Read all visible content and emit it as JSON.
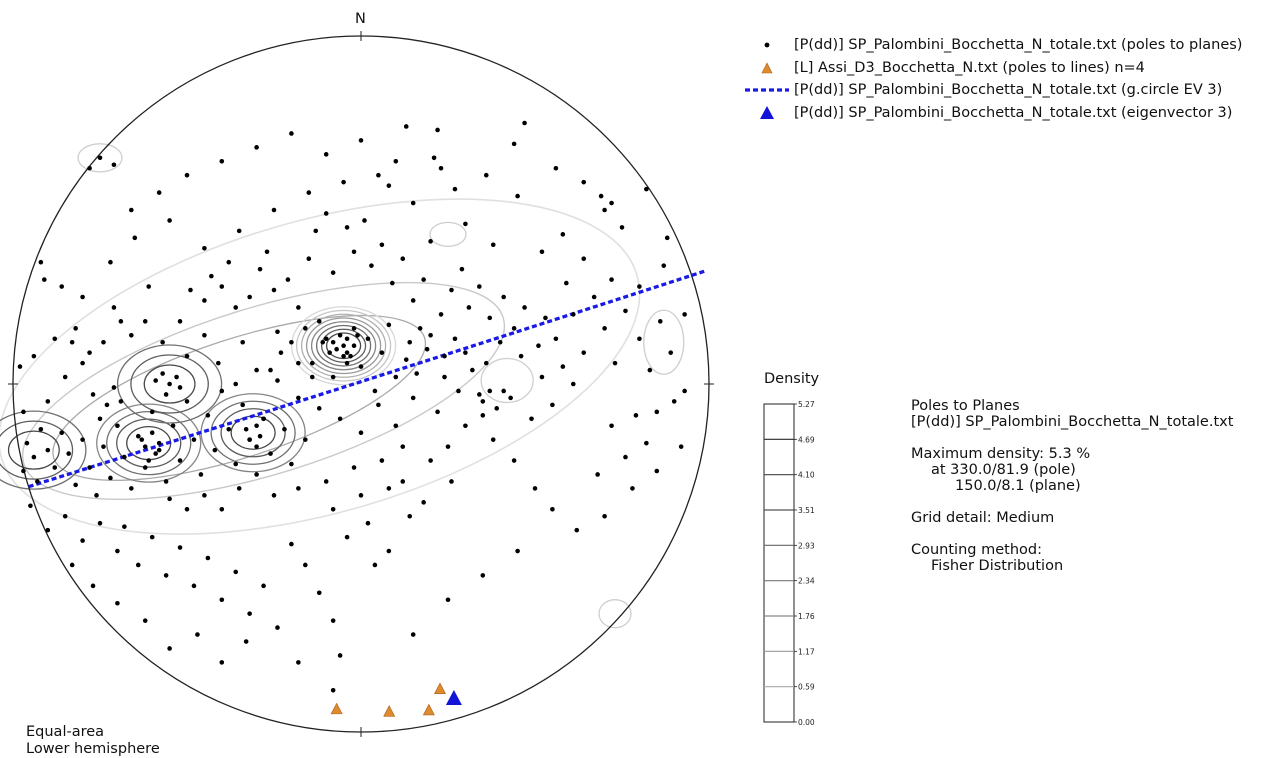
{
  "chart_data": {
    "type": "stereonet-scatter",
    "north_label": "N",
    "projection": {
      "line1": "Equal-area",
      "line2": "Lower hemisphere"
    },
    "legend": [
      {
        "symbol": "dot",
        "color": "#000000",
        "label": "[P(dd)] SP_Palombini_Bocchetta_N_totale.txt (poles to planes)"
      },
      {
        "symbol": "triangle",
        "color": "#e08a2e",
        "label": "[L] Assi_D3_Bocchetta_N.txt (poles to lines) n=4"
      },
      {
        "symbol": "dashed-line",
        "color": "#1a1ae6",
        "label": "[P(dd)] SP_Palombini_Bocchetta_N_totale.txt (g.circle EV 3)"
      },
      {
        "symbol": "big-triangle",
        "color": "#1414d9",
        "label": "[P(dd)] SP_Palombini_Bocchetta_N_totale.txt (eigenvector 3)"
      }
    ],
    "colorbar": {
      "title": "Density",
      "ticks": [
        "5.27",
        "4.69",
        "4.10",
        "3.51",
        "2.93",
        "2.34",
        "1.76",
        "1.17",
        "0.59",
        "0.00"
      ]
    },
    "info": {
      "heading": "Poles to Planes",
      "file": "[P(dd)] SP_Palombini_Bocchetta_N_totale.txt",
      "max_density": "Maximum density: 5.3 %",
      "max_pole": "at 330.0/81.9 (pole)",
      "max_plane": "150.0/8.1 (plane)",
      "grid": "Grid detail: Medium",
      "counting_label": "Counting method:",
      "counting_method": "Fisher Distribution"
    },
    "great_circle_ev3": {
      "color": "#1a1ae6"
    },
    "eigenvector3": {
      "x": 0.267,
      "y": -0.905,
      "color": "#1414d9"
    },
    "lines": [
      {
        "x": -0.07,
        "y": -0.935
      },
      {
        "x": 0.081,
        "y": -0.942
      },
      {
        "x": 0.195,
        "y": -0.938
      },
      {
        "x": 0.227,
        "y": -0.877
      }
    ],
    "density_max_centers": [
      {
        "x": -0.05,
        "y": 0.11,
        "levels": 8
      },
      {
        "x": -0.31,
        "y": -0.14,
        "levels": 4
      },
      {
        "x": -0.61,
        "y": -0.17,
        "levels": 4
      },
      {
        "x": -0.55,
        "y": 0.0,
        "levels": 3
      },
      {
        "x": -0.94,
        "y": -0.19,
        "levels": 3
      }
    ],
    "poles": [
      [
        -0.75,
        0.65
      ],
      [
        -0.78,
        0.62
      ],
      [
        -0.71,
        0.63
      ],
      [
        0.13,
        0.74
      ],
      [
        0.22,
        0.73
      ],
      [
        0.47,
        0.75
      ],
      [
        0.44,
        0.69
      ],
      [
        0.21,
        0.65
      ],
      [
        0.08,
        0.57
      ],
      [
        0.27,
        0.56
      ],
      [
        0.23,
        0.62
      ],
      [
        0.45,
        0.54
      ],
      [
        0.69,
        0.54
      ],
      [
        0.7,
        0.5
      ],
      [
        0.82,
        0.56
      ],
      [
        0.72,
        0.52
      ],
      [
        -0.91,
        0.3
      ],
      [
        -0.86,
        0.28
      ],
      [
        -0.82,
        0.16
      ],
      [
        -0.83,
        0.12
      ],
      [
        -0.78,
        0.09
      ],
      [
        -0.8,
        0.25
      ],
      [
        -0.71,
        0.22
      ],
      [
        -0.62,
        0.18
      ],
      [
        -0.61,
        0.28
      ],
      [
        -0.52,
        0.18
      ],
      [
        -0.49,
        0.27
      ],
      [
        -0.45,
        0.24
      ],
      [
        -0.43,
        0.31
      ],
      [
        -0.4,
        0.28
      ],
      [
        -0.38,
        0.35
      ],
      [
        -0.36,
        0.22
      ],
      [
        -0.32,
        0.25
      ],
      [
        -0.29,
        0.33
      ],
      [
        -0.27,
        0.38
      ],
      [
        -0.25,
        0.27
      ],
      [
        -0.21,
        0.3
      ],
      [
        -0.18,
        0.22
      ],
      [
        -0.15,
        0.36
      ],
      [
        -0.13,
        0.44
      ],
      [
        -0.1,
        0.49
      ],
      [
        -0.08,
        0.32
      ],
      [
        -0.04,
        0.45
      ],
      [
        -0.02,
        0.38
      ],
      [
        0.01,
        0.47
      ],
      [
        0.03,
        0.34
      ],
      [
        0.06,
        0.4
      ],
      [
        0.09,
        0.29
      ],
      [
        0.12,
        0.36
      ],
      [
        0.15,
        0.24
      ],
      [
        0.18,
        0.3
      ],
      [
        0.2,
        0.41
      ],
      [
        0.23,
        0.2
      ],
      [
        0.26,
        0.27
      ],
      [
        0.29,
        0.33
      ],
      [
        0.31,
        0.22
      ],
      [
        0.34,
        0.28
      ],
      [
        0.37,
        0.19
      ],
      [
        0.41,
        0.25
      ],
      [
        0.44,
        0.16
      ],
      [
        0.47,
        0.22
      ],
      [
        0.51,
        0.11
      ],
      [
        0.53,
        0.19
      ],
      [
        0.56,
        0.13
      ],
      [
        0.59,
        0.29
      ],
      [
        0.61,
        0.2
      ],
      [
        0.64,
        0.09
      ],
      [
        0.67,
        0.25
      ],
      [
        0.7,
        0.16
      ],
      [
        0.73,
        0.06
      ],
      [
        0.76,
        0.21
      ],
      [
        0.8,
        0.13
      ],
      [
        0.83,
        0.04
      ],
      [
        0.86,
        0.18
      ],
      [
        0.89,
        0.09
      ],
      [
        0.93,
        -0.02
      ],
      [
        0.9,
        -0.05
      ],
      [
        0.85,
        -0.08
      ],
      [
        0.82,
        -0.17
      ],
      [
        0.79,
        -0.09
      ],
      [
        0.76,
        -0.21
      ],
      [
        0.72,
        -0.12
      ],
      [
        0.68,
        -0.26
      ],
      [
        0.35,
        -0.05
      ],
      [
        0.37,
        -0.02
      ],
      [
        0.39,
        -0.07
      ],
      [
        0.35,
        -0.09
      ],
      [
        0.41,
        -0.02
      ],
      [
        0.34,
        -0.03
      ],
      [
        0.61,
        0.0
      ],
      [
        0.58,
        0.05
      ],
      [
        0.55,
        -0.06
      ],
      [
        0.52,
        0.02
      ],
      [
        0.49,
        -0.1
      ],
      [
        0.46,
        0.08
      ],
      [
        0.43,
        -0.04
      ],
      [
        -0.96,
        -0.17
      ],
      [
        -0.94,
        -0.21
      ],
      [
        -0.92,
        -0.13
      ],
      [
        -0.97,
        -0.25
      ],
      [
        -0.9,
        -0.19
      ],
      [
        -0.88,
        -0.24
      ],
      [
        -0.86,
        -0.14
      ],
      [
        -0.93,
        -0.28
      ],
      [
        -0.84,
        -0.2
      ],
      [
        -0.82,
        -0.29
      ],
      [
        -0.8,
        -0.16
      ],
      [
        -0.78,
        -0.24
      ],
      [
        -0.76,
        -0.32
      ],
      [
        -0.74,
        -0.18
      ],
      [
        -0.72,
        -0.27
      ],
      [
        -0.7,
        -0.12
      ],
      [
        -0.68,
        -0.21
      ],
      [
        -0.66,
        -0.3
      ],
      [
        -0.64,
        -0.15
      ],
      [
        -0.62,
        -0.24
      ],
      [
        -0.6,
        -0.08
      ],
      [
        -0.58,
        -0.19
      ],
      [
        -0.56,
        -0.28
      ],
      [
        -0.54,
        -0.12
      ],
      [
        -0.52,
        -0.22
      ],
      [
        -0.5,
        -0.05
      ],
      [
        -0.48,
        -0.16
      ],
      [
        -0.46,
        -0.26
      ],
      [
        -0.44,
        -0.09
      ],
      [
        -0.42,
        -0.19
      ],
      [
        -0.4,
        -0.02
      ],
      [
        -0.38,
        -0.13
      ],
      [
        -0.36,
        -0.23
      ],
      [
        -0.34,
        -0.06
      ],
      [
        -0.32,
        -0.16
      ],
      [
        -0.3,
        -0.26
      ],
      [
        -0.28,
        -0.1
      ],
      [
        -0.26,
        -0.2
      ],
      [
        -0.24,
        0.01
      ],
      [
        -0.22,
        -0.13
      ],
      [
        -0.2,
        -0.23
      ],
      [
        -0.18,
        -0.04
      ],
      [
        -0.16,
        -0.16
      ],
      [
        -0.14,
        0.06
      ],
      [
        -0.12,
        -0.07
      ],
      [
        -0.1,
        0.13
      ],
      [
        -0.08,
        0.02
      ],
      [
        -0.06,
        -0.1
      ],
      [
        -0.04,
        0.09
      ],
      [
        -0.02,
        0.16
      ],
      [
        0.0,
        0.05
      ],
      [
        0.02,
        0.13
      ],
      [
        0.04,
        -0.02
      ],
      [
        0.06,
        0.09
      ],
      [
        0.08,
        0.17
      ],
      [
        0.1,
        0.02
      ],
      [
        -0.05,
        0.11
      ],
      [
        -0.04,
        0.13
      ],
      [
        -0.07,
        0.1
      ],
      [
        -0.03,
        0.08
      ],
      [
        -0.06,
        0.14
      ],
      [
        -0.02,
        0.11
      ],
      [
        -0.08,
        0.12
      ],
      [
        -0.05,
        0.08
      ],
      [
        -0.01,
        0.14
      ],
      [
        -0.09,
        0.09
      ],
      [
        -0.04,
        0.06
      ],
      [
        -0.11,
        0.12
      ],
      [
        -0.6,
        -0.14
      ],
      [
        -0.62,
        -0.18
      ],
      [
        -0.59,
        -0.2
      ],
      [
        -0.63,
        -0.16
      ],
      [
        -0.58,
        -0.17
      ],
      [
        -0.61,
        -0.22
      ],
      [
        -0.3,
        -0.12
      ],
      [
        -0.32,
        -0.16
      ],
      [
        -0.29,
        -0.15
      ],
      [
        -0.33,
        -0.13
      ],
      [
        -0.3,
        -0.18
      ],
      [
        -0.28,
        -0.1
      ],
      [
        -0.55,
        0.0
      ],
      [
        -0.57,
        0.03
      ],
      [
        -0.53,
        0.02
      ],
      [
        -0.56,
        -0.03
      ],
      [
        -0.52,
        -0.01
      ],
      [
        -0.59,
        0.01
      ],
      [
        -0.95,
        -0.35
      ],
      [
        -0.9,
        -0.42
      ],
      [
        -0.85,
        -0.38
      ],
      [
        -0.8,
        -0.45
      ],
      [
        -0.75,
        -0.4
      ],
      [
        -0.7,
        -0.48
      ],
      [
        -0.68,
        -0.41
      ],
      [
        -0.64,
        -0.52
      ],
      [
        -0.6,
        -0.44
      ],
      [
        -0.56,
        -0.55
      ],
      [
        -0.52,
        -0.47
      ],
      [
        -0.48,
        -0.58
      ],
      [
        -0.44,
        -0.5
      ],
      [
        -0.4,
        -0.62
      ],
      [
        -0.36,
        -0.54
      ],
      [
        -0.32,
        -0.66
      ],
      [
        -0.28,
        -0.58
      ],
      [
        -0.24,
        -0.7
      ],
      [
        -0.2,
        -0.46
      ],
      [
        -0.16,
        -0.52
      ],
      [
        -0.12,
        -0.6
      ],
      [
        -0.08,
        -0.68
      ],
      [
        -0.04,
        -0.44
      ],
      [
        0.02,
        -0.4
      ],
      [
        0.08,
        -0.48
      ],
      [
        0.14,
        -0.38
      ],
      [
        0.18,
        -0.34
      ],
      [
        0.26,
        -0.28
      ],
      [
        -0.06,
        -0.78
      ],
      [
        0.04,
        -0.52
      ],
      [
        -0.9,
        -0.05
      ],
      [
        -0.85,
        0.02
      ],
      [
        -0.8,
        0.06
      ],
      [
        -0.94,
        0.08
      ],
      [
        -0.88,
        0.13
      ],
      [
        -0.72,
        0.35
      ],
      [
        -0.65,
        0.42
      ],
      [
        -0.55,
        0.47
      ],
      [
        -0.45,
        0.39
      ],
      [
        -0.35,
        0.44
      ],
      [
        -0.25,
        0.5
      ],
      [
        -0.15,
        0.55
      ],
      [
        -0.05,
        0.58
      ],
      [
        0.05,
        0.6
      ],
      [
        0.15,
        0.52
      ],
      [
        0.3,
        0.46
      ],
      [
        0.38,
        0.4
      ],
      [
        0.52,
        0.38
      ],
      [
        0.58,
        0.43
      ],
      [
        0.64,
        0.36
      ],
      [
        0.72,
        0.3
      ],
      [
        0.8,
        0.28
      ],
      [
        0.87,
        0.34
      ],
      [
        0.93,
        0.2
      ],
      [
        0.3,
        -0.12
      ],
      [
        0.25,
        -0.18
      ],
      [
        0.22,
        -0.08
      ],
      [
        0.12,
        -0.18
      ],
      [
        0.15,
        -0.04
      ],
      [
        0.1,
        -0.12
      ],
      [
        0.05,
        -0.06
      ],
      [
        0.0,
        -0.14
      ],
      [
        -0.02,
        -0.24
      ],
      [
        0.06,
        -0.22
      ],
      [
        0.12,
        -0.28
      ],
      [
        0.2,
        -0.22
      ],
      [
        0.55,
        -0.36
      ],
      [
        0.62,
        -0.42
      ],
      [
        0.7,
        -0.38
      ],
      [
        0.78,
        -0.3
      ],
      [
        0.85,
        -0.25
      ],
      [
        0.92,
        -0.18
      ],
      [
        -0.66,
        0.5
      ],
      [
        -0.58,
        0.55
      ],
      [
        -0.5,
        0.6
      ],
      [
        -0.4,
        0.64
      ],
      [
        -0.3,
        0.68
      ],
      [
        -0.2,
        0.72
      ],
      [
        -0.1,
        0.66
      ],
      [
        0.0,
        0.7
      ],
      [
        0.1,
        0.64
      ],
      [
        0.36,
        0.6
      ],
      [
        0.56,
        0.62
      ],
      [
        0.64,
        0.58
      ],
      [
        0.75,
        0.45
      ],
      [
        0.88,
        0.42
      ],
      [
        -0.92,
        0.35
      ],
      [
        -0.98,
        0.05
      ],
      [
        -0.97,
        -0.08
      ],
      [
        -0.83,
        -0.52
      ],
      [
        -0.77,
        -0.58
      ],
      [
        -0.7,
        -0.63
      ],
      [
        -0.62,
        -0.68
      ],
      [
        -0.55,
        -0.76
      ],
      [
        -0.4,
        -0.8
      ],
      [
        -0.47,
        -0.72
      ],
      [
        -0.33,
        -0.74
      ],
      [
        -0.18,
        -0.8
      ],
      [
        -0.08,
        -0.88
      ],
      [
        0.15,
        -0.72
      ],
      [
        0.25,
        -0.62
      ],
      [
        0.35,
        -0.55
      ],
      [
        0.45,
        -0.48
      ],
      [
        0.5,
        -0.3
      ],
      [
        0.44,
        -0.22
      ],
      [
        0.38,
        -0.16
      ],
      [
        -0.2,
        0.12
      ],
      [
        -0.18,
        0.06
      ],
      [
        -0.23,
        0.09
      ],
      [
        -0.16,
        0.16
      ],
      [
        -0.14,
        0.02
      ],
      [
        -0.26,
        0.04
      ],
      [
        -0.24,
        0.15
      ],
      [
        -0.12,
        0.18
      ],
      [
        0.14,
        0.12
      ],
      [
        0.17,
        0.16
      ],
      [
        0.13,
        0.07
      ],
      [
        0.19,
        0.1
      ],
      [
        0.16,
        0.03
      ],
      [
        0.2,
        0.14
      ],
      [
        0.24,
        0.08
      ],
      [
        0.27,
        0.13
      ],
      [
        -0.75,
        -0.1
      ],
      [
        -0.73,
        -0.06
      ],
      [
        -0.77,
        -0.03
      ],
      [
        -0.69,
        -0.05
      ],
      [
        -0.71,
        -0.01
      ],
      [
        -0.45,
        -0.32
      ],
      [
        -0.4,
        -0.36
      ],
      [
        -0.35,
        -0.3
      ],
      [
        -0.5,
        -0.36
      ],
      [
        -0.55,
        -0.33
      ],
      [
        -0.25,
        -0.32
      ],
      [
        -0.18,
        -0.3
      ],
      [
        -0.1,
        -0.28
      ],
      [
        -0.08,
        -0.36
      ],
      [
        0.0,
        -0.32
      ],
      [
        0.08,
        -0.3
      ],
      [
        -0.66,
        0.14
      ],
      [
        -0.69,
        0.18
      ],
      [
        -0.74,
        0.12
      ],
      [
        -0.57,
        0.12
      ],
      [
        -0.5,
        0.08
      ],
      [
        -0.45,
        0.14
      ],
      [
        -0.41,
        0.06
      ],
      [
        -0.34,
        0.12
      ],
      [
        -0.3,
        0.04
      ],
      [
        -0.36,
        0.0
      ],
      [
        0.32,
        0.04
      ],
      [
        0.28,
        -0.02
      ],
      [
        0.24,
        0.02
      ],
      [
        0.3,
        0.09
      ],
      [
        0.36,
        0.06
      ],
      [
        0.4,
        0.12
      ]
    ]
  }
}
